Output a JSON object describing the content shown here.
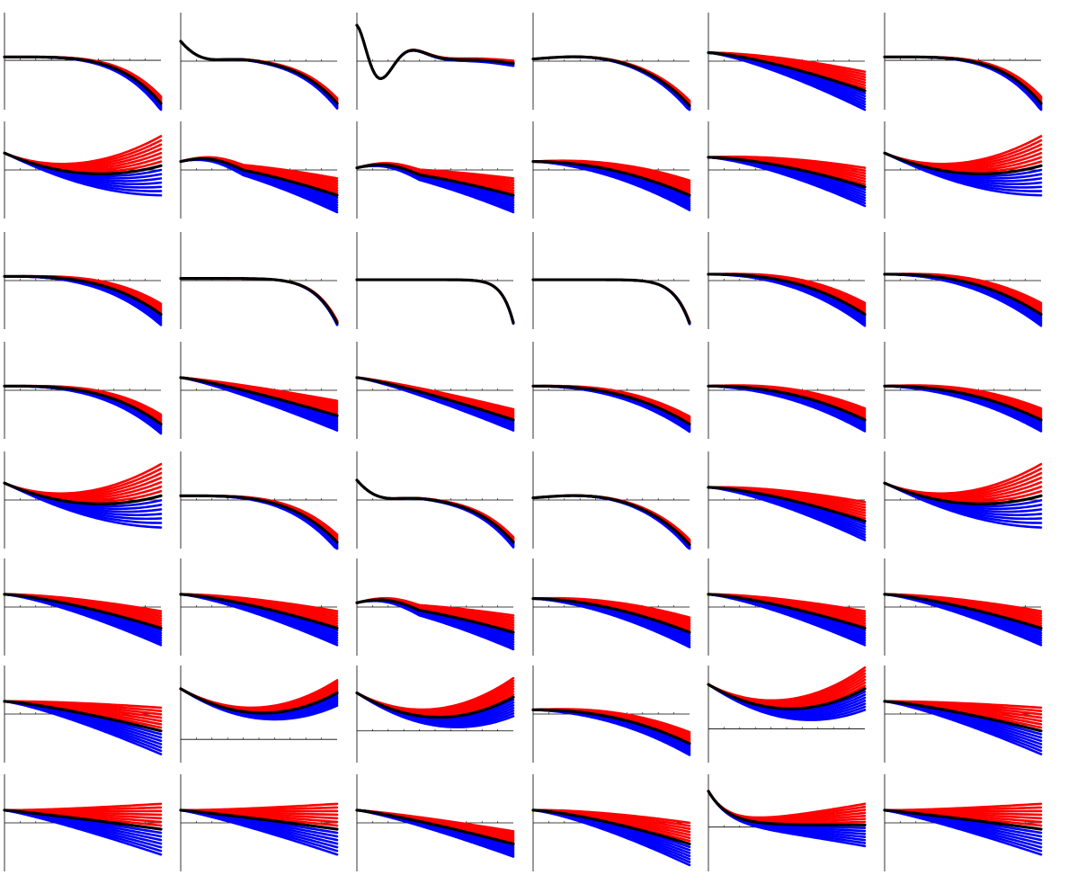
{
  "figure": {
    "rows": 8,
    "cols": 6,
    "colors": {
      "background": "#ffffff",
      "axis": "#000000",
      "family_upper": "#ff0000",
      "family_lower": "#0000ff",
      "baseline": "#000000"
    },
    "curves_per_family": 7,
    "x_ticks": 9
  },
  "chart_data": [
    {
      "type": "line",
      "shape": "sigmoid_drop",
      "y0": 0.1,
      "y1": -1.0,
      "k": 4,
      "spread": 0.18,
      "axis_y": 0.02
    },
    {
      "type": "line",
      "shape": "wavy_drop",
      "y0": 0.3,
      "y1": -1.0,
      "k": 4,
      "spread": 0.12,
      "axis_y": 0.0
    },
    {
      "type": "line",
      "shape": "oscillation",
      "y0": 1.0,
      "y1": -0.15,
      "k": 1,
      "spread": 0.06,
      "axis_y": 0.0
    },
    {
      "type": "line",
      "shape": "bump_drop",
      "y0": 0.05,
      "y1": -1.0,
      "k": 4,
      "spread": 0.12,
      "axis_y": 0.0
    },
    {
      "type": "line",
      "shape": "fan",
      "y0": 0.2,
      "y1": -0.7,
      "k": 1.4,
      "spread": 0.45,
      "axis_y": 0.0
    },
    {
      "type": "line",
      "shape": "sigmoid_drop",
      "y0": 0.1,
      "y1": -1.0,
      "k": 4,
      "spread": 0.18,
      "axis_y": 0.02
    },
    {
      "type": "line",
      "shape": "valley",
      "y0": 0.4,
      "y1": -0.1,
      "k": 1,
      "spread": 0.7,
      "axis_y": 0.0
    },
    {
      "type": "line",
      "shape": "fan_hump",
      "y0": 0.2,
      "y1": -0.6,
      "k": 1.5,
      "spread": 0.4,
      "axis_y": 0.0
    },
    {
      "type": "line",
      "shape": "fan_hump",
      "y0": 0.05,
      "y1": -0.6,
      "k": 1.5,
      "spread": 0.4,
      "axis_y": 0.0
    },
    {
      "type": "line",
      "shape": "fan",
      "y0": 0.2,
      "y1": -0.6,
      "k": 2,
      "spread": 0.35,
      "axis_y": 0.0
    },
    {
      "type": "line",
      "shape": "fan",
      "y0": 0.3,
      "y1": -0.4,
      "k": 1.6,
      "spread": 0.45,
      "axis_y": 0.0
    },
    {
      "type": "line",
      "shape": "valley",
      "y0": 0.4,
      "y1": -0.1,
      "k": 1,
      "spread": 0.7,
      "axis_y": 0.0
    },
    {
      "type": "line",
      "shape": "sigmoid_drop",
      "y0": 0.1,
      "y1": -0.8,
      "k": 3,
      "spread": 0.28,
      "axis_y": 0.0
    },
    {
      "type": "line",
      "shape": "steep_drop",
      "y0": 0.05,
      "y1": -1.0,
      "k": 7,
      "spread": 0.05,
      "axis_y": 0.0
    },
    {
      "type": "line",
      "shape": "steep_drop",
      "y0": 0.02,
      "y1": -1.0,
      "k": 14,
      "spread": 0.02,
      "axis_y": 0.0
    },
    {
      "type": "line",
      "shape": "steep_drop",
      "y0": 0.02,
      "y1": -1.0,
      "k": 10,
      "spread": 0.03,
      "axis_y": 0.0
    },
    {
      "type": "line",
      "shape": "sigmoid_drop",
      "y0": 0.15,
      "y1": -0.8,
      "k": 2.5,
      "spread": 0.3,
      "axis_y": 0.0
    },
    {
      "type": "line",
      "shape": "sigmoid_drop",
      "y0": 0.15,
      "y1": -0.8,
      "k": 2.5,
      "spread": 0.3,
      "axis_y": 0.0
    },
    {
      "type": "line",
      "shape": "sigmoid_drop",
      "y0": 0.1,
      "y1": -0.8,
      "k": 3,
      "spread": 0.25,
      "axis_y": 0.0
    },
    {
      "type": "line",
      "shape": "fan",
      "y0": 0.3,
      "y1": -0.6,
      "k": 1.2,
      "spread": 0.35,
      "axis_y": 0.0
    },
    {
      "type": "line",
      "shape": "fan",
      "y0": 0.3,
      "y1": -0.7,
      "k": 1.2,
      "spread": 0.25,
      "axis_y": 0.0
    },
    {
      "type": "line",
      "shape": "sigmoid_drop",
      "y0": 0.1,
      "y1": -0.8,
      "k": 2.5,
      "spread": 0.2,
      "axis_y": 0.0
    },
    {
      "type": "line",
      "shape": "sigmoid_drop",
      "y0": 0.1,
      "y1": -0.7,
      "k": 2.2,
      "spread": 0.3,
      "axis_y": 0.0
    },
    {
      "type": "line",
      "shape": "sigmoid_drop",
      "y0": 0.1,
      "y1": -0.7,
      "k": 2.2,
      "spread": 0.3,
      "axis_y": 0.0
    },
    {
      "type": "line",
      "shape": "valley",
      "y0": 0.4,
      "y1": 0.1,
      "k": 1,
      "spread": 0.75,
      "axis_y": 0.0
    },
    {
      "type": "line",
      "shape": "sigmoid_drop",
      "y0": 0.1,
      "y1": -1.0,
      "k": 3.5,
      "spread": 0.2,
      "axis_y": 0.0
    },
    {
      "type": "line",
      "shape": "wavy_drop",
      "y0": 0.3,
      "y1": -1.0,
      "k": 4,
      "spread": 0.12,
      "axis_y": 0.0
    },
    {
      "type": "line",
      "shape": "bump_drop",
      "y0": 0.05,
      "y1": -1.0,
      "k": 4,
      "spread": 0.12,
      "axis_y": 0.0
    },
    {
      "type": "line",
      "shape": "fan",
      "y0": 0.3,
      "y1": -0.5,
      "k": 1.5,
      "spread": 0.45,
      "axis_y": 0.0
    },
    {
      "type": "line",
      "shape": "valley",
      "y0": 0.4,
      "y1": 0.1,
      "k": 1,
      "spread": 0.75,
      "axis_y": 0.0
    },
    {
      "type": "line",
      "shape": "fan",
      "y0": 0.3,
      "y1": -0.5,
      "k": 1.4,
      "spread": 0.4,
      "axis_y": 0.0
    },
    {
      "type": "line",
      "shape": "fan",
      "y0": 0.3,
      "y1": -0.5,
      "k": 1.4,
      "spread": 0.4,
      "axis_y": 0.0
    },
    {
      "type": "line",
      "shape": "fan_hump",
      "y0": 0.1,
      "y1": -0.6,
      "k": 1.5,
      "spread": 0.4,
      "axis_y": 0.0
    },
    {
      "type": "line",
      "shape": "fan",
      "y0": 0.2,
      "y1": -0.6,
      "k": 1.8,
      "spread": 0.35,
      "axis_y": 0.0
    },
    {
      "type": "line",
      "shape": "fan",
      "y0": 0.3,
      "y1": -0.5,
      "k": 1.4,
      "spread": 0.4,
      "axis_y": 0.0
    },
    {
      "type": "line",
      "shape": "fan",
      "y0": 0.3,
      "y1": -0.5,
      "k": 1.4,
      "spread": 0.4,
      "axis_y": 0.0
    },
    {
      "type": "line",
      "shape": "fan",
      "y0": 0.3,
      "y1": -0.4,
      "k": 1.3,
      "spread": 0.55,
      "axis_y": 0.0
    },
    {
      "type": "line",
      "shape": "u_curve",
      "y0": 0.6,
      "y1": 0.5,
      "k": 1,
      "spread": 0.3,
      "axis_y": -0.6
    },
    {
      "type": "line",
      "shape": "u_curve",
      "y0": 0.5,
      "y1": 0.2,
      "k": 1,
      "spread": 0.45,
      "axis_y": -0.4
    },
    {
      "type": "line",
      "shape": "sigmoid_drop",
      "y0": 0.1,
      "y1": -0.7,
      "k": 2.2,
      "spread": 0.3,
      "axis_y": 0.0
    },
    {
      "type": "line",
      "shape": "u_curve",
      "y0": 0.7,
      "y1": 0.3,
      "k": 1,
      "spread": 0.5,
      "axis_y": -0.35
    },
    {
      "type": "line",
      "shape": "fan",
      "y0": 0.3,
      "y1": -0.4,
      "k": 1.3,
      "spread": 0.55,
      "axis_y": 0.0
    },
    {
      "type": "line",
      "shape": "fan",
      "y0": 0.3,
      "y1": -0.15,
      "k": 1.1,
      "spread": 0.6,
      "axis_y": 0.0
    },
    {
      "type": "line",
      "shape": "fan",
      "y0": 0.3,
      "y1": -0.15,
      "k": 1.1,
      "spread": 0.6,
      "axis_y": 0.0
    },
    {
      "type": "line",
      "shape": "fan",
      "y0": 0.3,
      "y1": -0.5,
      "k": 1.2,
      "spread": 0.3,
      "axis_y": 0.0
    },
    {
      "type": "line",
      "shape": "fan",
      "y0": 0.3,
      "y1": -0.5,
      "k": 1.4,
      "spread": 0.5,
      "axis_y": 0.0
    },
    {
      "type": "line",
      "shape": "decay_fan",
      "y0": 0.8,
      "y1": 0.0,
      "k": 1,
      "spread": 0.5,
      "axis_y": -0.1
    },
    {
      "type": "line",
      "shape": "fan",
      "y0": 0.3,
      "y1": -0.15,
      "k": 1.1,
      "spread": 0.6,
      "axis_y": 0.0
    }
  ]
}
